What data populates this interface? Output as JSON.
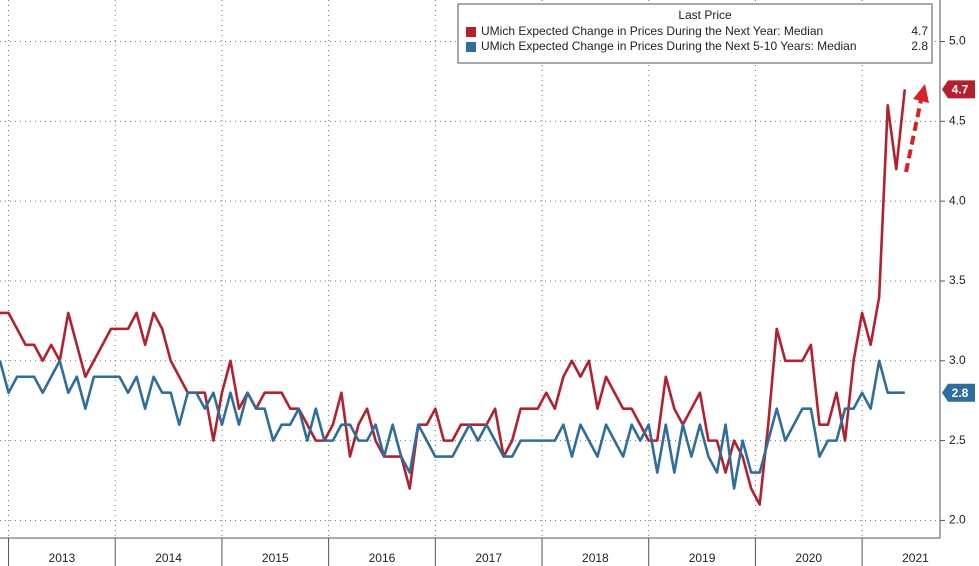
{
  "chart_data": {
    "type": "line",
    "legend_title": "Last Price",
    "legend": "top-right",
    "grid": true,
    "x": [
      2012.92,
      2013.0,
      2013.08,
      2013.16,
      2013.24,
      2013.32,
      2013.4,
      2013.48,
      2013.56,
      2013.64,
      2013.72,
      2013.8,
      2013.88,
      2013.96,
      2014.04,
      2014.12,
      2014.2,
      2014.28,
      2014.36,
      2014.44,
      2014.52,
      2014.6,
      2014.68,
      2014.76,
      2014.84,
      2014.92,
      2015.0,
      2015.08,
      2015.16,
      2015.24,
      2015.32,
      2015.4,
      2015.48,
      2015.56,
      2015.64,
      2015.72,
      2015.8,
      2015.88,
      2015.96,
      2016.04,
      2016.12,
      2016.2,
      2016.28,
      2016.36,
      2016.44,
      2016.52,
      2016.6,
      2016.68,
      2016.76,
      2016.84,
      2016.92,
      2017.0,
      2017.08,
      2017.16,
      2017.24,
      2017.32,
      2017.4,
      2017.48,
      2017.56,
      2017.64,
      2017.72,
      2017.8,
      2017.88,
      2017.96,
      2018.04,
      2018.12,
      2018.2,
      2018.28,
      2018.36,
      2018.44,
      2018.52,
      2018.6,
      2018.68,
      2018.76,
      2018.84,
      2018.92,
      2019.0,
      2019.08,
      2019.16,
      2019.24,
      2019.32,
      2019.4,
      2019.48,
      2019.56,
      2019.64,
      2019.72,
      2019.8,
      2019.88,
      2019.96,
      2020.04,
      2020.12,
      2020.2,
      2020.28,
      2020.36,
      2020.44,
      2020.52,
      2020.6,
      2020.68,
      2020.76,
      2020.84,
      2020.92,
      2021.0,
      2021.08,
      2021.16,
      2021.24,
      2021.32,
      2021.4
    ],
    "series": [
      {
        "name": "UMich Expected Change in Prices During the Next Year: Median",
        "color": "#b5202e",
        "values": [
          3.3,
          3.3,
          3.2,
          3.1,
          3.1,
          3.0,
          3.1,
          3.0,
          3.3,
          3.1,
          2.9,
          3.0,
          3.1,
          3.2,
          3.2,
          3.2,
          3.3,
          3.1,
          3.3,
          3.2,
          3.0,
          2.9,
          2.8,
          2.8,
          2.8,
          2.5,
          2.8,
          3.0,
          2.7,
          2.8,
          2.7,
          2.8,
          2.8,
          2.8,
          2.7,
          2.7,
          2.6,
          2.5,
          2.5,
          2.6,
          2.8,
          2.4,
          2.6,
          2.7,
          2.5,
          2.4,
          2.4,
          2.4,
          2.2,
          2.6,
          2.6,
          2.7,
          2.5,
          2.5,
          2.6,
          2.6,
          2.6,
          2.6,
          2.7,
          2.4,
          2.5,
          2.7,
          2.7,
          2.7,
          2.8,
          2.7,
          2.9,
          3.0,
          2.9,
          3.0,
          2.7,
          2.9,
          2.8,
          2.7,
          2.7,
          2.6,
          2.5,
          2.5,
          2.9,
          2.7,
          2.6,
          2.7,
          2.8,
          2.5,
          2.5,
          2.3,
          2.5,
          2.4,
          2.2,
          2.1,
          2.6,
          3.2,
          3.0,
          3.0,
          3.0,
          3.1,
          2.6,
          2.6,
          2.8,
          2.5,
          3.0,
          3.3,
          3.1,
          3.4,
          4.6,
          4.2,
          4.7
        ]
      },
      {
        "name": "UMich Expected Change in Prices During the Next 5-10 Years: Median",
        "color": "#2f6d9c",
        "values": [
          3.0,
          2.8,
          2.9,
          2.9,
          2.9,
          2.8,
          2.9,
          3.0,
          2.8,
          2.9,
          2.7,
          2.9,
          2.9,
          2.9,
          2.9,
          2.8,
          2.9,
          2.7,
          2.9,
          2.8,
          2.8,
          2.6,
          2.8,
          2.8,
          2.7,
          2.8,
          2.6,
          2.8,
          2.6,
          2.8,
          2.7,
          2.7,
          2.5,
          2.6,
          2.6,
          2.7,
          2.5,
          2.7,
          2.5,
          2.5,
          2.6,
          2.6,
          2.5,
          2.5,
          2.6,
          2.4,
          2.6,
          2.4,
          2.3,
          2.6,
          2.5,
          2.4,
          2.4,
          2.4,
          2.5,
          2.6,
          2.5,
          2.6,
          2.5,
          2.4,
          2.4,
          2.5,
          2.5,
          2.5,
          2.5,
          2.5,
          2.6,
          2.4,
          2.6,
          2.5,
          2.4,
          2.6,
          2.5,
          2.4,
          2.6,
          2.5,
          2.6,
          2.3,
          2.6,
          2.3,
          2.6,
          2.4,
          2.6,
          2.4,
          2.3,
          2.6,
          2.2,
          2.5,
          2.3,
          2.3,
          2.5,
          2.7,
          2.5,
          2.6,
          2.7,
          2.7,
          2.4,
          2.5,
          2.5,
          2.7,
          2.7,
          2.8,
          2.7,
          3.0,
          2.8,
          2.8,
          2.8
        ]
      }
    ],
    "xlim": [
      2012.92,
      2021.73
    ],
    "xticks": [
      2013,
      2014,
      2015,
      2016,
      2017,
      2018,
      2019,
      2020,
      2021
    ],
    "ylim": [
      1.89,
      5.26
    ],
    "yticks": [
      {
        "value": 2,
        "label": "2.0"
      },
      2.5,
      {
        "value": 3,
        "label": "3.0"
      },
      3.5,
      {
        "value": 4,
        "label": "4.0"
      },
      4.5,
      {
        "value": 5,
        "label": "5.0"
      }
    ]
  }
}
